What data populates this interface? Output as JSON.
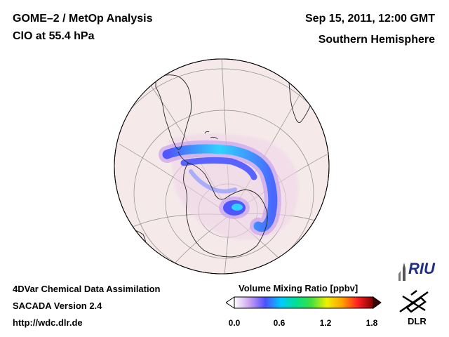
{
  "header": {
    "title_left": "GOME–2 / MetOp Analysis",
    "subtitle_left": "ClO at 55.4 hPa",
    "title_right": "Sep 15, 2011, 12:00 GMT",
    "subtitle_right": "Southern Hemisphere"
  },
  "footer": {
    "line1": "4DVar Chemical Data Assimilation",
    "line2": "SACADA Version 2.4",
    "line3": "http://wdc.dlr.de"
  },
  "colorbar": {
    "title": "Volume Mixing Ratio [ppbv]",
    "min": 0.0,
    "max": 1.8,
    "ticks": [
      "0.0",
      "0.6",
      "1.2",
      "1.8"
    ],
    "stops": [
      "#ffffff",
      "#c8a0f0",
      "#5050ff",
      "#00c8ff",
      "#00e090",
      "#40e040",
      "#f0f000",
      "#ffa000",
      "#ff2020",
      "#800000"
    ]
  },
  "map": {
    "projection": "orthographic south polar view",
    "ocean_color": "#f5e9ea",
    "field_description": "ClO vortex edge band"
  },
  "logos": {
    "riu": "RIU",
    "dlr": "DLR"
  }
}
